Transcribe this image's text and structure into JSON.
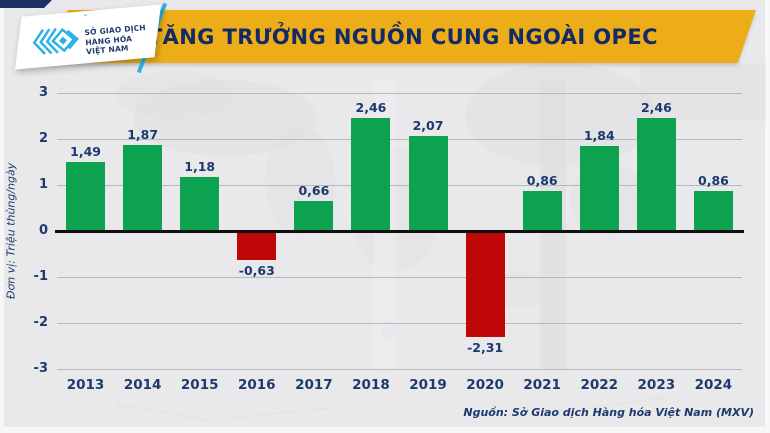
{
  "header": {
    "title": "TĂNG TRƯỞNG NGUỒN CUNG NGOÀI OPEC",
    "logo": {
      "line1": "SỞ GIAO DỊCH",
      "line2": "HÀNG HÓA",
      "line3": "VIỆT NAM",
      "trademark": "™"
    }
  },
  "footer": {
    "source": "Nguồn: Sở Giao dịch Hàng hóa Việt Nam (MXV)"
  },
  "chart_data": {
    "type": "bar",
    "title": "TĂNG TRƯỞNG NGUỒN CUNG NGOÀI OPEC",
    "categories": [
      "2013",
      "2014",
      "2015",
      "2016",
      "2017",
      "2018",
      "2019",
      "2020",
      "2021",
      "2022",
      "2023",
      "2024"
    ],
    "values": [
      1.49,
      1.87,
      1.18,
      -0.63,
      0.66,
      2.46,
      2.07,
      -2.31,
      0.86,
      1.84,
      2.46,
      0.86
    ],
    "value_labels": [
      "1,49",
      "1,87",
      "1,18",
      "-0,63",
      "0,66",
      "2,46",
      "2,07",
      "-2,31",
      "0,86",
      "1,84",
      "2,46",
      "0,86"
    ],
    "xlabel": "",
    "ylabel": "Đơn vị: Triệu thùng/ngày",
    "ylim": [
      -3,
      3
    ],
    "yticks": [
      3,
      2,
      1,
      0,
      -1,
      -2,
      -3
    ],
    "grid": true,
    "legend": "none",
    "colors": {
      "positive": "#0ca24f",
      "negative": "#c00707",
      "axis_text": "#1d3a6e",
      "title_text": "#122b66",
      "banner": "#edad18",
      "grid_line": "#b7b9bc",
      "zero_line": "#101010",
      "logo_cyan": "#29b2e5",
      "background": "#e9e9eb"
    }
  }
}
